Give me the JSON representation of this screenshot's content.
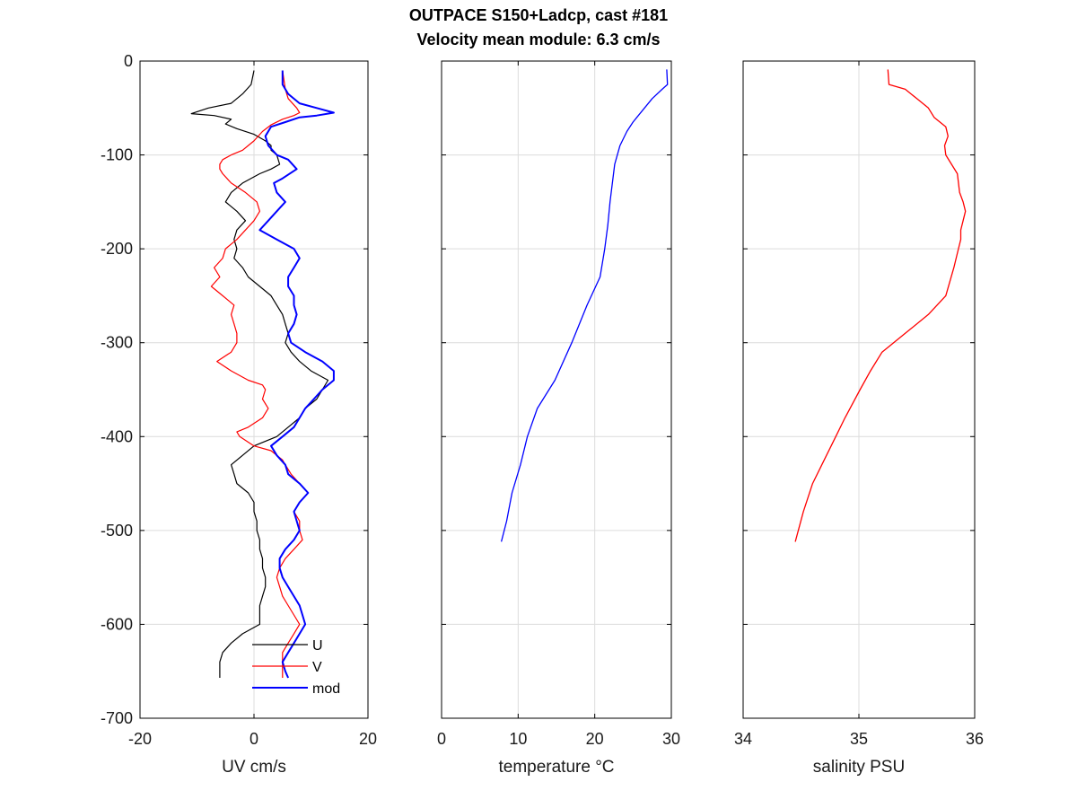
{
  "figure": {
    "title_line1": "OUTPACE S150+Ladcp, cast #181",
    "title_line2": "Velocity mean module:  6.3 cm/s"
  },
  "colors": {
    "U": "#000000",
    "V": "#ff0000",
    "mod": "#0000ff",
    "temperature": "#0000ff",
    "salinity": "#ff0000",
    "grid": "#dcdcdc"
  },
  "chart_data": [
    {
      "type": "line",
      "xlabel": "UV cm/s",
      "ylabel": "",
      "xlim": [
        -20,
        20
      ],
      "ylim": [
        -700,
        0
      ],
      "xticks": [
        "-20",
        "0",
        "20"
      ],
      "yticks": [
        "0",
        "-100",
        "-200",
        "-300",
        "-400",
        "-500",
        "-600",
        "-700"
      ],
      "grid": true,
      "legend_position": "bottom-center",
      "series": [
        {
          "name": "U",
          "color": "#000000",
          "y": [
            -10,
            -25,
            -35,
            -45,
            -50,
            -56,
            -58,
            -62,
            -67,
            -72,
            -78,
            -85,
            -90,
            -95,
            -100,
            -110,
            -115,
            -120,
            -130,
            -140,
            -150,
            -160,
            -170,
            -180,
            -190,
            -200,
            -210,
            -220,
            -230,
            -240,
            -250,
            -260,
            -270,
            -280,
            -290,
            -300,
            -310,
            -320,
            -330,
            -340,
            -350,
            -360,
            -370,
            -380,
            -390,
            -400,
            -410,
            -420,
            -430,
            -440,
            -450,
            -460,
            -470,
            -480,
            -490,
            -500,
            -510,
            -520,
            -530,
            -540,
            -550,
            -560,
            -570,
            -580,
            -590,
            -600,
            -610,
            -620,
            -630,
            -640,
            -650,
            -657
          ],
          "values": [
            0,
            -0.5,
            -2,
            -4,
            -8,
            -11,
            -7,
            -4,
            -5,
            -3,
            0,
            2,
            3,
            3,
            4,
            4.5,
            3,
            1,
            -2,
            -4,
            -5,
            -3,
            -1.5,
            -3,
            -3.5,
            -3,
            -3.5,
            -2,
            -1,
            1,
            3,
            4,
            5,
            5.5,
            6,
            5.5,
            6.5,
            8,
            10,
            13,
            12,
            11,
            9,
            8,
            6,
            4,
            0,
            -2,
            -4,
            -3.5,
            -3,
            -1,
            0,
            0,
            0.5,
            0.5,
            1,
            1,
            1.5,
            1.5,
            2,
            2,
            1.5,
            1,
            1,
            1,
            -2,
            -4,
            -5.5,
            -6,
            -6,
            -6
          ]
        },
        {
          "name": "V",
          "color": "#ff0000",
          "y": [
            -10,
            -30,
            -40,
            -50,
            -55,
            -58,
            -62,
            -68,
            -75,
            -85,
            -90,
            -95,
            -100,
            -105,
            -110,
            -115,
            -120,
            -130,
            -140,
            -150,
            -160,
            -170,
            -180,
            -190,
            -200,
            -210,
            -220,
            -230,
            -240,
            -250,
            -260,
            -270,
            -280,
            -290,
            -300,
            -310,
            -320,
            -330,
            -340,
            -345,
            -350,
            -360,
            -370,
            -380,
            -390,
            -395,
            -400,
            -410,
            -415,
            -420,
            -425,
            -430,
            -440,
            -450,
            -460,
            -470,
            -480,
            -490,
            -500,
            -510,
            -520,
            -530,
            -540,
            -550,
            -560,
            -570,
            -580,
            -590,
            -600,
            -610,
            -620,
            -630,
            -640,
            -650,
            -657
          ],
          "values": [
            5,
            5.5,
            6,
            7.5,
            8,
            7,
            5,
            3,
            1.5,
            0,
            -1,
            -2,
            -4,
            -5.5,
            -6,
            -6,
            -5.5,
            -4,
            -1.5,
            0.5,
            1,
            0,
            -1.5,
            -3,
            -5,
            -5.5,
            -7,
            -6,
            -7.5,
            -5.5,
            -3.5,
            -4,
            -3.5,
            -3,
            -3,
            -4,
            -6.5,
            -4,
            -1,
            1.5,
            2,
            1.5,
            2.5,
            1.5,
            -1,
            -3,
            -2.5,
            0,
            3,
            4,
            5,
            5.5,
            6.5,
            8,
            9.5,
            8,
            7,
            8,
            8,
            8.5,
            7,
            5.5,
            4.5,
            4,
            4.5,
            5,
            6,
            7,
            8,
            7,
            6,
            5,
            5,
            5,
            5
          ]
        },
        {
          "name": "mod",
          "color": "#0000ff",
          "y": [
            -10,
            -25,
            -35,
            -45,
            -50,
            -55,
            -58,
            -60,
            -65,
            -70,
            -80,
            -90,
            -100,
            -105,
            -115,
            -125,
            -130,
            -140,
            -150,
            -160,
            -170,
            -180,
            -190,
            -200,
            -210,
            -220,
            -230,
            -240,
            -250,
            -260,
            -270,
            -280,
            -290,
            -300,
            -310,
            -320,
            -330,
            -340,
            -350,
            -360,
            -370,
            -380,
            -390,
            -400,
            -410,
            -420,
            -430,
            -440,
            -450,
            -460,
            -470,
            -480,
            -490,
            -500,
            -510,
            -520,
            -530,
            -540,
            -550,
            -560,
            -570,
            -580,
            -590,
            -600,
            -610,
            -620,
            -630,
            -640,
            -650,
            -657
          ],
          "values": [
            5,
            5,
            6,
            8,
            11,
            14,
            11,
            8,
            5.5,
            3,
            2,
            2.5,
            4,
            6,
            7.5,
            5,
            3.5,
            4,
            5.5,
            4,
            2.5,
            1,
            4,
            7,
            8,
            7,
            6,
            6,
            7,
            7,
            7.5,
            7,
            6,
            6.5,
            9,
            12,
            14,
            14,
            12,
            10.5,
            9,
            8,
            7,
            5,
            3,
            4,
            5.5,
            6,
            8,
            9.5,
            8,
            7,
            7.5,
            8,
            7,
            5.5,
            4.5,
            4.5,
            5,
            6,
            7,
            8,
            8.5,
            9,
            8,
            7,
            6,
            5,
            5.5,
            6
          ]
        }
      ]
    },
    {
      "type": "line",
      "xlabel": "temperature °C",
      "ylabel": "",
      "xlim": [
        0,
        30
      ],
      "ylim": [
        -700,
        0
      ],
      "xticks": [
        "0",
        "10",
        "20",
        "30"
      ],
      "yticks": [],
      "grid": true,
      "series": [
        {
          "color": "#0000ff",
          "y": [
            -9,
            -25,
            -30,
            -40,
            -50,
            -60,
            -65,
            -75,
            -90,
            -110,
            -130,
            -150,
            -175,
            -200,
            -230,
            -260,
            -300,
            -340,
            -370,
            -400,
            -430,
            -460,
            -490,
            -512
          ],
          "values": [
            29.4,
            29.5,
            28.8,
            27.5,
            26.5,
            25.5,
            25,
            24.2,
            23.3,
            22.6,
            22.3,
            22,
            21.7,
            21.3,
            20.7,
            19,
            17,
            14.8,
            12.5,
            11.2,
            10.3,
            9.2,
            8.5,
            7.8
          ]
        }
      ]
    },
    {
      "type": "line",
      "xlabel": "salinity PSU",
      "ylabel": "",
      "xlim": [
        34,
        36
      ],
      "ylim": [
        -700,
        0
      ],
      "xticks": [
        "34",
        "35",
        "36"
      ],
      "yticks": [],
      "grid": true,
      "series": [
        {
          "color": "#ff0000",
          "y": [
            -9,
            -25,
            -30,
            -40,
            -50,
            -60,
            -70,
            -80,
            -90,
            -100,
            -120,
            -140,
            -150,
            -160,
            -170,
            -180,
            -190,
            -200,
            -220,
            -250,
            -270,
            -290,
            -310,
            -330,
            -350,
            -380,
            -400,
            -430,
            -450,
            -480,
            -512
          ],
          "values": [
            35.25,
            35.26,
            35.4,
            35.5,
            35.6,
            35.65,
            35.75,
            35.77,
            35.74,
            35.75,
            35.85,
            35.87,
            35.9,
            35.92,
            35.9,
            35.88,
            35.88,
            35.86,
            35.82,
            35.75,
            35.6,
            35.4,
            35.2,
            35.1,
            35.01,
            34.88,
            34.8,
            34.68,
            34.6,
            34.52,
            34.45
          ]
        }
      ]
    }
  ]
}
